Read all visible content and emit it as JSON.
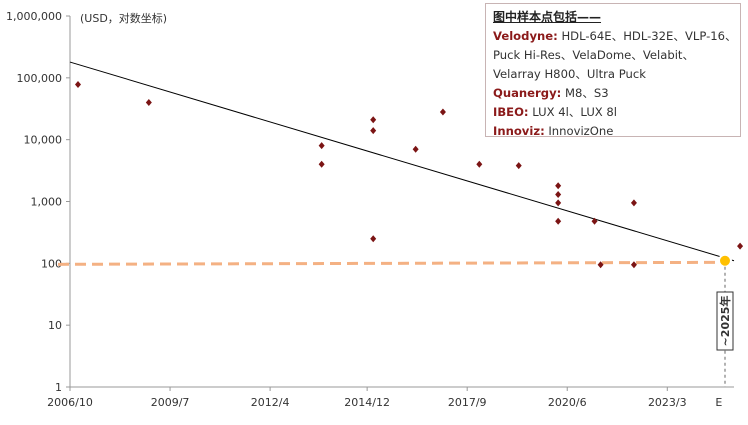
{
  "chart_data": {
    "type": "scatter",
    "ylabel": "(USD，对数坐标)",
    "y_scale": "log",
    "ylim": [
      1,
      1000000
    ],
    "y_ticks": [
      "1",
      "10",
      "100",
      "1,000",
      "10,000",
      "100,000",
      "1,000,000"
    ],
    "x_ticks": [
      "2006/10",
      "2009/7",
      "2012/4",
      "2014/12",
      "2017/9",
      "2020/6",
      "2023/3",
      "E"
    ],
    "xlim": [
      "2006/10",
      "2025"
    ],
    "points": [
      {
        "x": "2006/10",
        "y": 78000
      },
      {
        "x": "2008/12",
        "y": 40000
      },
      {
        "x": "2013/9",
        "y": 8000
      },
      {
        "x": "2013/9",
        "y": 4000
      },
      {
        "x": "2015/2",
        "y": 21000
      },
      {
        "x": "2015/2",
        "y": 14000
      },
      {
        "x": "2015/2",
        "y": 250
      },
      {
        "x": "2016/4",
        "y": 7000
      },
      {
        "x": "2017/1",
        "y": 28000
      },
      {
        "x": "2018/1",
        "y": 4000
      },
      {
        "x": "2019/2",
        "y": 3800
      },
      {
        "x": "2020/3",
        "y": 1800
      },
      {
        "x": "2020/3",
        "y": 1300
      },
      {
        "x": "2020/3",
        "y": 950
      },
      {
        "x": "2020/3",
        "y": 480
      },
      {
        "x": "2021/3",
        "y": 480
      },
      {
        "x": "2021/5",
        "y": 95
      },
      {
        "x": "2022/4",
        "y": 950
      },
      {
        "x": "2022/4",
        "y": 95
      },
      {
        "x": "2025/3",
        "y": 190
      }
    ],
    "trend_line": {
      "start": {
        "x": "2006/10",
        "y": 180000
      },
      "end": {
        "x": "2025",
        "y": 110
      }
    },
    "reference_line": {
      "y": 100,
      "style": "dashed",
      "color": "#f4b183"
    },
    "highlight_point": {
      "x": "2025",
      "y": 110,
      "color": "#ffc000"
    },
    "annotation": "~2025年",
    "grid": false,
    "legend": {
      "title": "图中样本点包括——",
      "entries": [
        {
          "maker": "Velodyne:",
          "models": "HDL-64E、HDL-32E、VLP-16、",
          "continuation": [
            "Puck Hi-Res、VelaDome、Velabit、",
            "Velarray H800、Ultra Puck"
          ]
        },
        {
          "maker": "Quanergy:",
          "models": "M8、S3"
        },
        {
          "maker": "IBEO:",
          "models": "LUX 4l、LUX 8l"
        },
        {
          "maker": "Innoviz:",
          "models": "InnovizOne"
        }
      ],
      "placement": "top-right"
    },
    "colors": {
      "marker": "#7b1414",
      "trend": "#000000",
      "reference": "#f4b183",
      "highlight": "#ffc000",
      "maker_text": "#8b1a1a"
    }
  }
}
